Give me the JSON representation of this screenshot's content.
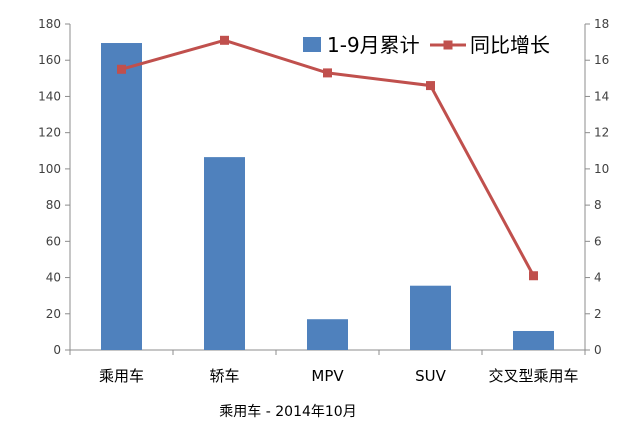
{
  "chart_data": {
    "type": "bar",
    "categories": [
      "乘用车",
      "轿车",
      "MPV",
      "SUV",
      "交叉型乘用车"
    ],
    "series": [
      {
        "name": "1-9月累计",
        "type": "bar",
        "axis": "left",
        "values": [
          169.5,
          106.5,
          17,
          35.5,
          10.5
        ]
      },
      {
        "name": "同比增长",
        "type": "line",
        "axis": "right",
        "values": [
          15.5,
          17.1,
          15.3,
          14.6,
          4.1
        ]
      }
    ],
    "ylim": [
      0,
      180
    ],
    "yticks": [
      0,
      20,
      40,
      60,
      80,
      100,
      120,
      140,
      160,
      180
    ],
    "y2lim": [
      0,
      18
    ],
    "y2ticks": [
      0,
      2,
      4,
      6,
      8,
      10,
      12,
      14,
      16,
      18
    ],
    "legend_position": "top-right",
    "grid": false,
    "colors": {
      "bar": "#4F81BD",
      "line": "#C0504D"
    }
  },
  "caption": "乘用车 - 2014年10月"
}
